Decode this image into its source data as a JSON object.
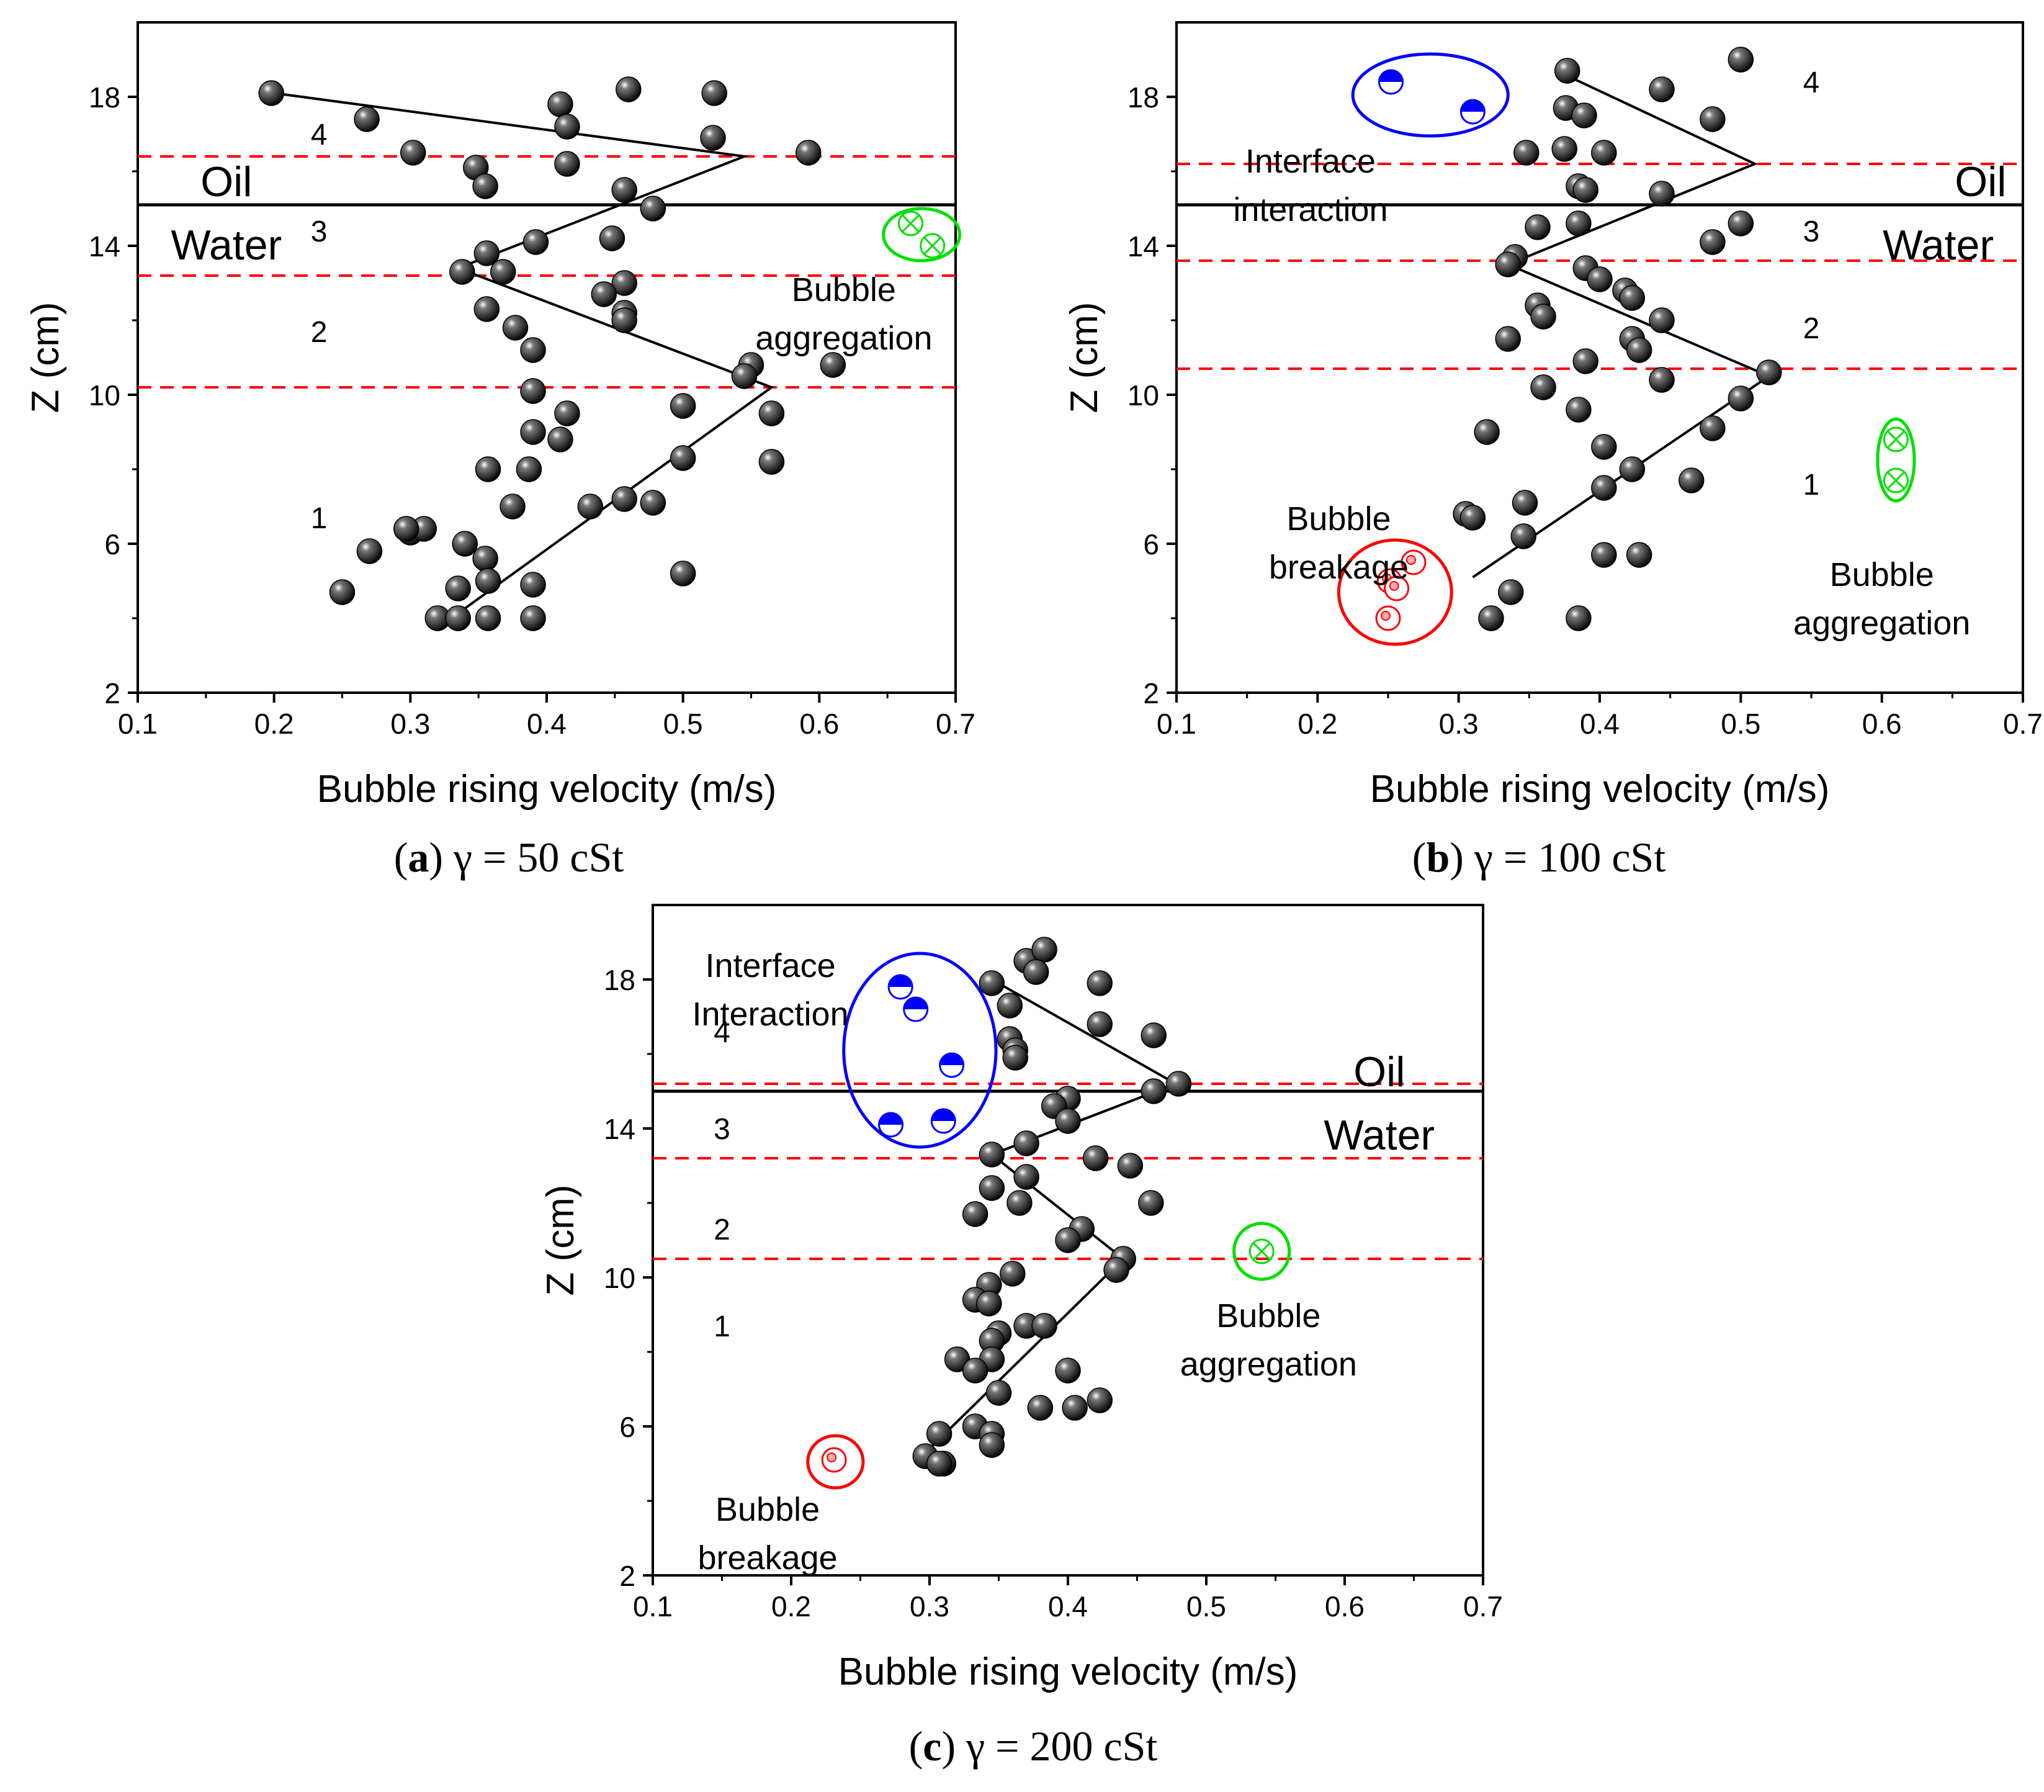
{
  "colors": {
    "axis": "#000000",
    "dashed": "#ff0000",
    "interface": "#0000ff",
    "aggregation": "#00e000",
    "breakage": "#ff0000",
    "bubble": "#111111"
  },
  "chart_data": [
    {
      "id": "a",
      "type": "scatter",
      "xlabel": "Bubble rising velocity (m/s)",
      "ylabel": "Z (cm)",
      "xlim": [
        0.1,
        0.7
      ],
      "ylim": [
        2,
        20
      ],
      "xticks": [
        "0.1",
        "0.2",
        "0.3",
        "0.4",
        "0.5",
        "0.6",
        "0.7"
      ],
      "yticks": [
        "2",
        "6",
        "10",
        "14",
        "18"
      ],
      "caption": {
        "letter": "a",
        "text": "γ = 50 cSt"
      },
      "dashed_lines": [
        16.4,
        13.2,
        10.2
      ],
      "solid_lines": [
        15.1
      ],
      "phase_labels": [
        {
          "text": "Oil",
          "x": 0.165,
          "y": 15.7
        },
        {
          "text": "Water",
          "x": 0.165,
          "y": 14.0
        }
      ],
      "zone_labels": [
        {
          "text": "4",
          "x": 0.233,
          "y": 17.0
        },
        {
          "text": "3",
          "x": 0.233,
          "y": 14.4
        },
        {
          "text": "2",
          "x": 0.233,
          "y": 11.7
        },
        {
          "text": "1",
          "x": 0.233,
          "y": 6.7
        }
      ],
      "trend": [
        [
          0.2,
          18.1
        ],
        [
          0.545,
          16.4
        ],
        [
          0.335,
          13.4
        ],
        [
          0.565,
          10.2
        ],
        [
          0.33,
          4.0
        ]
      ],
      "points": [
        [
          0.198,
          18.1
        ],
        [
          0.268,
          17.4
        ],
        [
          0.41,
          17.8
        ],
        [
          0.415,
          17.2
        ],
        [
          0.46,
          18.2
        ],
        [
          0.523,
          18.1
        ],
        [
          0.522,
          16.9
        ],
        [
          0.592,
          16.5
        ],
        [
          0.302,
          16.5
        ],
        [
          0.348,
          16.1
        ],
        [
          0.355,
          15.6
        ],
        [
          0.415,
          16.2
        ],
        [
          0.457,
          15.5
        ],
        [
          0.478,
          15.0
        ],
        [
          0.448,
          14.2
        ],
        [
          0.392,
          14.1
        ],
        [
          0.356,
          13.8
        ],
        [
          0.338,
          13.3
        ],
        [
          0.368,
          13.3
        ],
        [
          0.457,
          13.0
        ],
        [
          0.442,
          12.7
        ],
        [
          0.457,
          12.2
        ],
        [
          0.457,
          12.0
        ],
        [
          0.356,
          12.3
        ],
        [
          0.377,
          11.8
        ],
        [
          0.39,
          11.2
        ],
        [
          0.55,
          10.8
        ],
        [
          0.545,
          10.5
        ],
        [
          0.61,
          10.8
        ],
        [
          0.39,
          10.1
        ],
        [
          0.5,
          9.7
        ],
        [
          0.415,
          9.5
        ],
        [
          0.565,
          9.5
        ],
        [
          0.39,
          9.0
        ],
        [
          0.41,
          8.8
        ],
        [
          0.5,
          8.3
        ],
        [
          0.565,
          8.2
        ],
        [
          0.357,
          8.0
        ],
        [
          0.387,
          8.0
        ],
        [
          0.457,
          7.2
        ],
        [
          0.478,
          7.1
        ],
        [
          0.432,
          7.0
        ],
        [
          0.375,
          7.0
        ],
        [
          0.3,
          6.3
        ],
        [
          0.31,
          6.4
        ],
        [
          0.297,
          6.4
        ],
        [
          0.27,
          5.8
        ],
        [
          0.34,
          6.0
        ],
        [
          0.355,
          5.6
        ],
        [
          0.25,
          4.7
        ],
        [
          0.335,
          4.8
        ],
        [
          0.357,
          5.0
        ],
        [
          0.39,
          4.9
        ],
        [
          0.5,
          5.2
        ],
        [
          0.32,
          4.0
        ],
        [
          0.335,
          4.0
        ],
        [
          0.357,
          4.0
        ],
        [
          0.39,
          4.0
        ]
      ],
      "annotations": [
        {
          "kind": "aggregation",
          "text": [
            "Bubble",
            "aggregation"
          ],
          "text_x": 0.618,
          "text_y": 12.85,
          "ellipse": [
            0.675,
            14.3,
            0.028,
            0.7
          ],
          "markers": [
            [
              0.667,
              14.6
            ],
            [
              0.683,
              14.0
            ]
          ]
        }
      ]
    },
    {
      "id": "b",
      "type": "scatter",
      "xlabel": "Bubble rising velocity (m/s)",
      "ylabel": "Z (cm)",
      "xlim": [
        0.1,
        0.7
      ],
      "ylim": [
        2,
        20
      ],
      "xticks": [
        "0.1",
        "0.2",
        "0.3",
        "0.4",
        "0.5",
        "0.6",
        "0.7"
      ],
      "yticks": [
        "2",
        "6",
        "10",
        "14",
        "18"
      ],
      "caption": {
        "letter": "b",
        "text": "γ = 100 cSt"
      },
      "dashed_lines": [
        16.2,
        13.6,
        10.7
      ],
      "solid_lines": [
        15.1
      ],
      "phase_labels": [
        {
          "text": "Oil",
          "x": 0.67,
          "y": 15.7
        },
        {
          "text": "Water",
          "x": 0.64,
          "y": 14.0
        }
      ],
      "zone_labels": [
        {
          "text": "4",
          "x": 0.55,
          "y": 18.4
        },
        {
          "text": "3",
          "x": 0.55,
          "y": 14.4
        },
        {
          "text": "2",
          "x": 0.55,
          "y": 11.8
        },
        {
          "text": "1",
          "x": 0.55,
          "y": 7.6
        }
      ],
      "trend": [
        [
          0.375,
          18.6
        ],
        [
          0.51,
          16.2
        ],
        [
          0.335,
          13.5
        ],
        [
          0.52,
          10.5
        ],
        [
          0.31,
          5.1
        ]
      ],
      "points": [
        [
          0.377,
          18.7
        ],
        [
          0.444,
          18.2
        ],
        [
          0.5,
          19.0
        ],
        [
          0.48,
          17.4
        ],
        [
          0.376,
          17.7
        ],
        [
          0.389,
          17.5
        ],
        [
          0.375,
          16.6
        ],
        [
          0.403,
          16.5
        ],
        [
          0.348,
          16.5
        ],
        [
          0.385,
          15.6
        ],
        [
          0.39,
          15.5
        ],
        [
          0.444,
          15.4
        ],
        [
          0.5,
          14.6
        ],
        [
          0.48,
          14.1
        ],
        [
          0.385,
          14.6
        ],
        [
          0.356,
          14.5
        ],
        [
          0.34,
          13.7
        ],
        [
          0.335,
          13.5
        ],
        [
          0.39,
          13.4
        ],
        [
          0.4,
          13.1
        ],
        [
          0.418,
          12.8
        ],
        [
          0.423,
          12.6
        ],
        [
          0.356,
          12.4
        ],
        [
          0.36,
          12.1
        ],
        [
          0.444,
          12.0
        ],
        [
          0.423,
          11.5
        ],
        [
          0.428,
          11.2
        ],
        [
          0.335,
          11.5
        ],
        [
          0.52,
          10.6
        ],
        [
          0.39,
          10.9
        ],
        [
          0.5,
          9.9
        ],
        [
          0.444,
          10.4
        ],
        [
          0.36,
          10.2
        ],
        [
          0.385,
          9.6
        ],
        [
          0.32,
          9.0
        ],
        [
          0.48,
          9.1
        ],
        [
          0.403,
          8.6
        ],
        [
          0.423,
          8.0
        ],
        [
          0.403,
          7.5
        ],
        [
          0.465,
          7.7
        ],
        [
          0.347,
          7.1
        ],
        [
          0.305,
          6.8
        ],
        [
          0.31,
          6.7
        ],
        [
          0.346,
          6.2
        ],
        [
          0.403,
          5.7
        ],
        [
          0.428,
          5.7
        ],
        [
          0.337,
          4.7
        ],
        [
          0.323,
          4.0
        ],
        [
          0.385,
          4.0
        ]
      ],
      "annotations": [
        {
          "kind": "interface",
          "text": [
            "Interface",
            "interaction"
          ],
          "text_x": 0.195,
          "text_y": 16.3,
          "ellipse": [
            0.28,
            18.05,
            0.055,
            1.1
          ],
          "markers": [
            [
              0.252,
              18.4
            ],
            [
              0.31,
              17.6
            ]
          ]
        },
        {
          "kind": "breakage",
          "text": [
            "Bubble",
            "breakage"
          ],
          "text_x": 0.215,
          "text_y": 6.7,
          "ellipse": [
            0.255,
            4.7,
            0.04,
            1.4
          ],
          "markers": [
            [
              0.251,
              5.0
            ],
            [
              0.256,
              4.8
            ],
            [
              0.268,
              5.5
            ],
            [
              0.25,
              4.0
            ]
          ]
        },
        {
          "kind": "aggregation",
          "text": [
            "Bubble",
            "aggregation"
          ],
          "text_x": 0.6,
          "text_y": 5.2,
          "ellipse": [
            0.61,
            8.25,
            0.013,
            1.1
          ],
          "markers": [
            [
              0.61,
              8.8
            ],
            [
              0.61,
              7.7
            ]
          ]
        }
      ]
    },
    {
      "id": "c",
      "type": "scatter",
      "xlabel": "Bubble rising velocity (m/s)",
      "ylabel": "Z (cm)",
      "xlim": [
        0.1,
        0.7
      ],
      "ylim": [
        2,
        20
      ],
      "xticks": [
        "0.1",
        "0.2",
        "0.3",
        "0.4",
        "0.5",
        "0.6",
        "0.7"
      ],
      "yticks": [
        "2",
        "6",
        "10",
        "14",
        "18"
      ],
      "caption": {
        "letter": "c",
        "text": "γ = 200 cSt"
      },
      "dashed_lines": [
        15.2,
        13.2,
        10.5
      ],
      "solid_lines": [
        15.0
      ],
      "phase_labels": [
        {
          "text": "Oil",
          "x": 0.625,
          "y": 15.5
        },
        {
          "text": "Water",
          "x": 0.625,
          "y": 13.8
        }
      ],
      "zone_labels": [
        {
          "text": "4",
          "x": 0.15,
          "y": 16.6
        },
        {
          "text": "3",
          "x": 0.15,
          "y": 14.0
        },
        {
          "text": "2",
          "x": 0.15,
          "y": 11.3
        },
        {
          "text": "1",
          "x": 0.15,
          "y": 8.7
        }
      ],
      "trend": [
        [
          0.345,
          18.0
        ],
        [
          0.478,
          15.2
        ],
        [
          0.345,
          13.3
        ],
        [
          0.44,
          10.5
        ],
        [
          0.3,
          5.4
        ]
      ],
      "points": [
        [
          0.345,
          17.9
        ],
        [
          0.37,
          18.5
        ],
        [
          0.383,
          18.8
        ],
        [
          0.377,
          18.2
        ],
        [
          0.423,
          17.9
        ],
        [
          0.358,
          17.3
        ],
        [
          0.423,
          16.8
        ],
        [
          0.462,
          16.5
        ],
        [
          0.358,
          16.4
        ],
        [
          0.362,
          16.1
        ],
        [
          0.362,
          15.9
        ],
        [
          0.48,
          15.2
        ],
        [
          0.462,
          15.0
        ],
        [
          0.4,
          14.8
        ],
        [
          0.39,
          14.6
        ],
        [
          0.4,
          14.2
        ],
        [
          0.37,
          13.6
        ],
        [
          0.345,
          13.3
        ],
        [
          0.42,
          13.2
        ],
        [
          0.445,
          13.0
        ],
        [
          0.37,
          12.7
        ],
        [
          0.345,
          12.4
        ],
        [
          0.365,
          12.0
        ],
        [
          0.46,
          12.0
        ],
        [
          0.333,
          11.7
        ],
        [
          0.41,
          11.3
        ],
        [
          0.4,
          11.0
        ],
        [
          0.44,
          10.5
        ],
        [
          0.435,
          10.2
        ],
        [
          0.36,
          10.1
        ],
        [
          0.343,
          9.8
        ],
        [
          0.333,
          9.4
        ],
        [
          0.343,
          9.3
        ],
        [
          0.37,
          8.7
        ],
        [
          0.383,
          8.7
        ],
        [
          0.35,
          8.5
        ],
        [
          0.345,
          8.3
        ],
        [
          0.32,
          7.8
        ],
        [
          0.345,
          7.8
        ],
        [
          0.333,
          7.5
        ],
        [
          0.4,
          7.5
        ],
        [
          0.35,
          6.9
        ],
        [
          0.38,
          6.5
        ],
        [
          0.405,
          6.5
        ],
        [
          0.423,
          6.7
        ],
        [
          0.333,
          6.0
        ],
        [
          0.345,
          5.8
        ],
        [
          0.307,
          5.8
        ],
        [
          0.345,
          5.5
        ],
        [
          0.297,
          5.2
        ],
        [
          0.31,
          5.0
        ],
        [
          0.307,
          5.0
        ]
      ],
      "annotations": [
        {
          "kind": "interface",
          "text": [
            "Interface",
            "Interaction"
          ],
          "text_x": 0.185,
          "text_y": 18.4,
          "ellipse": [
            0.293,
            16.1,
            0.055,
            2.6
          ],
          "markers": [
            [
              0.279,
              17.8
            ],
            [
              0.29,
              17.2
            ],
            [
              0.316,
              15.7
            ],
            [
              0.272,
              14.1
            ],
            [
              0.31,
              14.2
            ]
          ]
        },
        {
          "kind": "breakage",
          "text": [
            "Bubble",
            "breakage"
          ],
          "text_x": 0.183,
          "text_y": 3.8,
          "ellipse": [
            0.232,
            5.05,
            0.02,
            0.7
          ],
          "markers": [
            [
              0.231,
              5.1
            ]
          ]
        },
        {
          "kind": "aggregation",
          "text": [
            "Bubble",
            "aggregation"
          ],
          "text_x": 0.545,
          "text_y": 9.0,
          "ellipse": [
            0.54,
            10.7,
            0.02,
            0.75
          ],
          "markers": [
            [
              0.54,
              10.7
            ]
          ]
        }
      ]
    }
  ]
}
